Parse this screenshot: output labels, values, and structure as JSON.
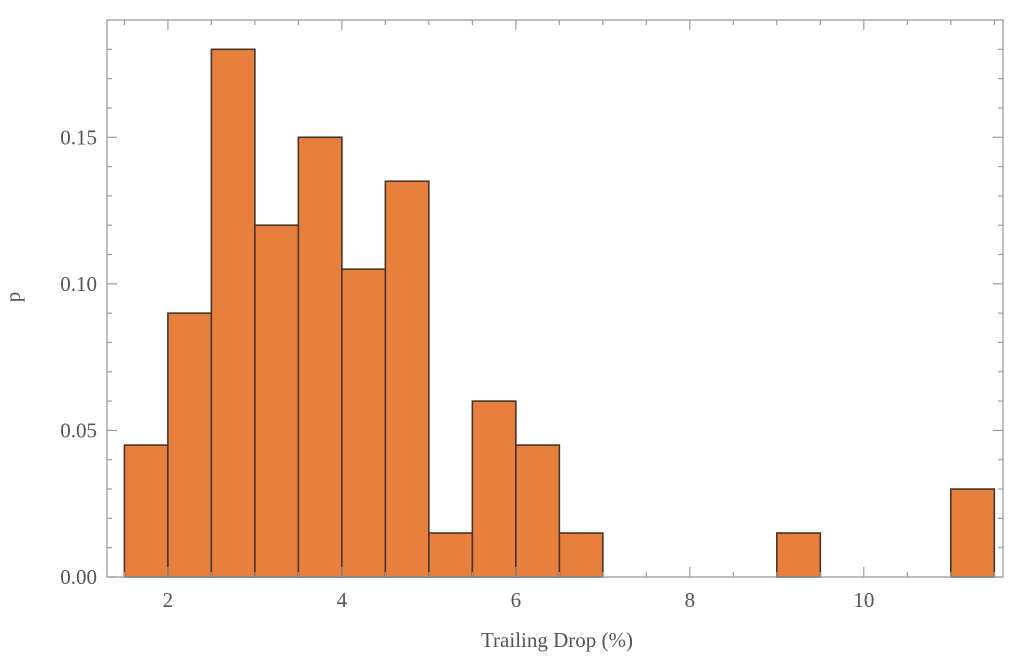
{
  "colors": {
    "bar_fill": "#e8803d",
    "bar_stroke": "#4a3428",
    "frame": "#9a9a9a",
    "text": "#555555"
  },
  "chart_data": {
    "type": "bar",
    "subtype": "histogram",
    "title": "",
    "xlabel": "Trailing Drop (%)",
    "ylabel": "p",
    "xlim": [
      1.3,
      11.6
    ],
    "ylim": [
      0,
      0.19
    ],
    "bin_width": 0.5,
    "grid": false,
    "x_ticks": [
      {
        "value": 2,
        "label": "2"
      },
      {
        "value": 4,
        "label": "4"
      },
      {
        "value": 6,
        "label": "6"
      },
      {
        "value": 8,
        "label": "8"
      },
      {
        "value": 10,
        "label": "10"
      }
    ],
    "y_ticks": [
      {
        "value": 0,
        "label": "0.00"
      },
      {
        "value": 0.05,
        "label": "0.05"
      },
      {
        "value": 0.1,
        "label": "0.10"
      },
      {
        "value": 0.15,
        "label": "0.15"
      }
    ],
    "bins": [
      {
        "x0": 1.5,
        "x1": 2.0,
        "p": 0.045
      },
      {
        "x0": 2.0,
        "x1": 2.5,
        "p": 0.09
      },
      {
        "x0": 2.5,
        "x1": 3.0,
        "p": 0.18
      },
      {
        "x0": 3.0,
        "x1": 3.5,
        "p": 0.12
      },
      {
        "x0": 3.5,
        "x1": 4.0,
        "p": 0.15
      },
      {
        "x0": 4.0,
        "x1": 4.5,
        "p": 0.105
      },
      {
        "x0": 4.5,
        "x1": 5.0,
        "p": 0.135
      },
      {
        "x0": 5.0,
        "x1": 5.5,
        "p": 0.015
      },
      {
        "x0": 5.5,
        "x1": 6.0,
        "p": 0.06
      },
      {
        "x0": 6.0,
        "x1": 6.5,
        "p": 0.045
      },
      {
        "x0": 6.5,
        "x1": 7.0,
        "p": 0.015
      },
      {
        "x0": 9.0,
        "x1": 9.5,
        "p": 0.015
      },
      {
        "x0": 11.0,
        "x1": 11.5,
        "p": 0.03
      }
    ]
  }
}
